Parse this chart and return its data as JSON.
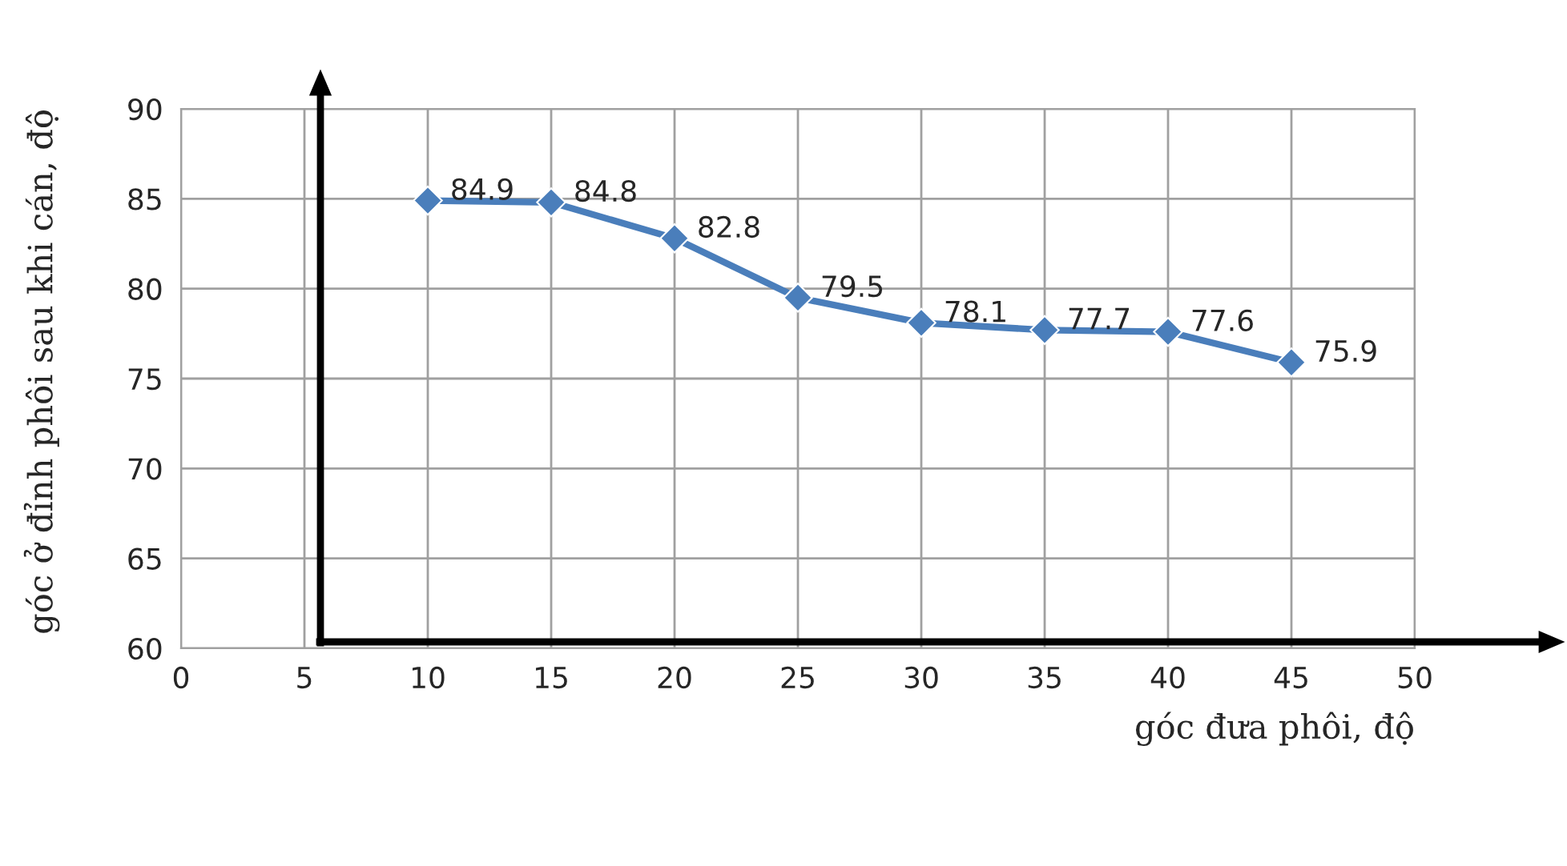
{
  "chart_data": {
    "type": "line",
    "xlabel": "góc đưa phôi, độ",
    "ylabel": "góc ở đỉnh phôi sau khi cán, độ",
    "x": [
      10,
      15,
      20,
      25,
      30,
      35,
      40,
      45
    ],
    "series": [
      {
        "color": "#4a7ebb",
        "values": [
          84.9,
          84.8,
          82.8,
          79.5,
          78.1,
          77.7,
          77.6,
          75.9
        ]
      }
    ],
    "xlim": [
      0,
      50
    ],
    "xticks": [
      0,
      5,
      10,
      15,
      20,
      25,
      30,
      35,
      40,
      45,
      50
    ],
    "ylim": [
      60,
      90
    ],
    "yticks": [
      60,
      65,
      70,
      75,
      80,
      85,
      90
    ],
    "grid": true,
    "marker": "diamond",
    "line_style": "solid",
    "data_labels": true
  }
}
